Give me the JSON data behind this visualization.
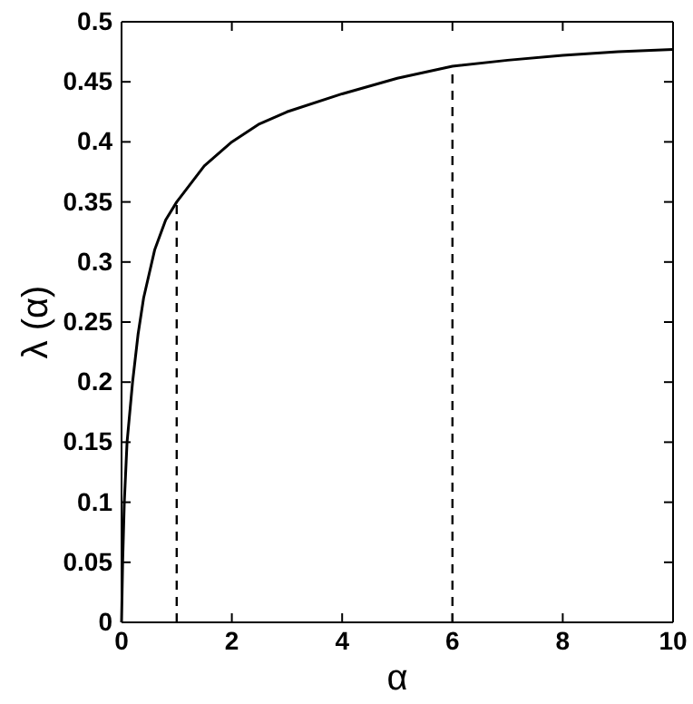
{
  "chart_data": {
    "type": "line",
    "xlabel": "α",
    "ylabel": "λ (α)",
    "xlim": [
      0,
      10
    ],
    "ylim": [
      0,
      0.5
    ],
    "xticks": [
      0,
      2,
      4,
      6,
      8,
      10
    ],
    "yticks": [
      0,
      0.05,
      0.1,
      0.15,
      0.2,
      0.25,
      0.3,
      0.35,
      0.4,
      0.45,
      0.5
    ],
    "marker": "none",
    "series": [
      {
        "color": "#000000",
        "line_style": "solid",
        "x": [
          0,
          0.02,
          0.05,
          0.1,
          0.2,
          0.3,
          0.4,
          0.6,
          0.8,
          1,
          1.5,
          2,
          2.5,
          3,
          4,
          5,
          6,
          7,
          8,
          9,
          10
        ],
        "values": [
          0,
          0.05,
          0.1,
          0.15,
          0.2,
          0.24,
          0.27,
          0.31,
          0.335,
          0.35,
          0.38,
          0.4,
          0.415,
          0.425,
          0.44,
          0.453,
          0.463,
          0.468,
          0.472,
          0.475,
          0.477
        ]
      }
    ],
    "ref_lines": [
      {
        "axis": "x",
        "value": 1,
        "color": "#000000",
        "line_style": "dashed"
      },
      {
        "axis": "x",
        "value": 6,
        "color": "#000000",
        "line_style": "dashed"
      }
    ]
  }
}
